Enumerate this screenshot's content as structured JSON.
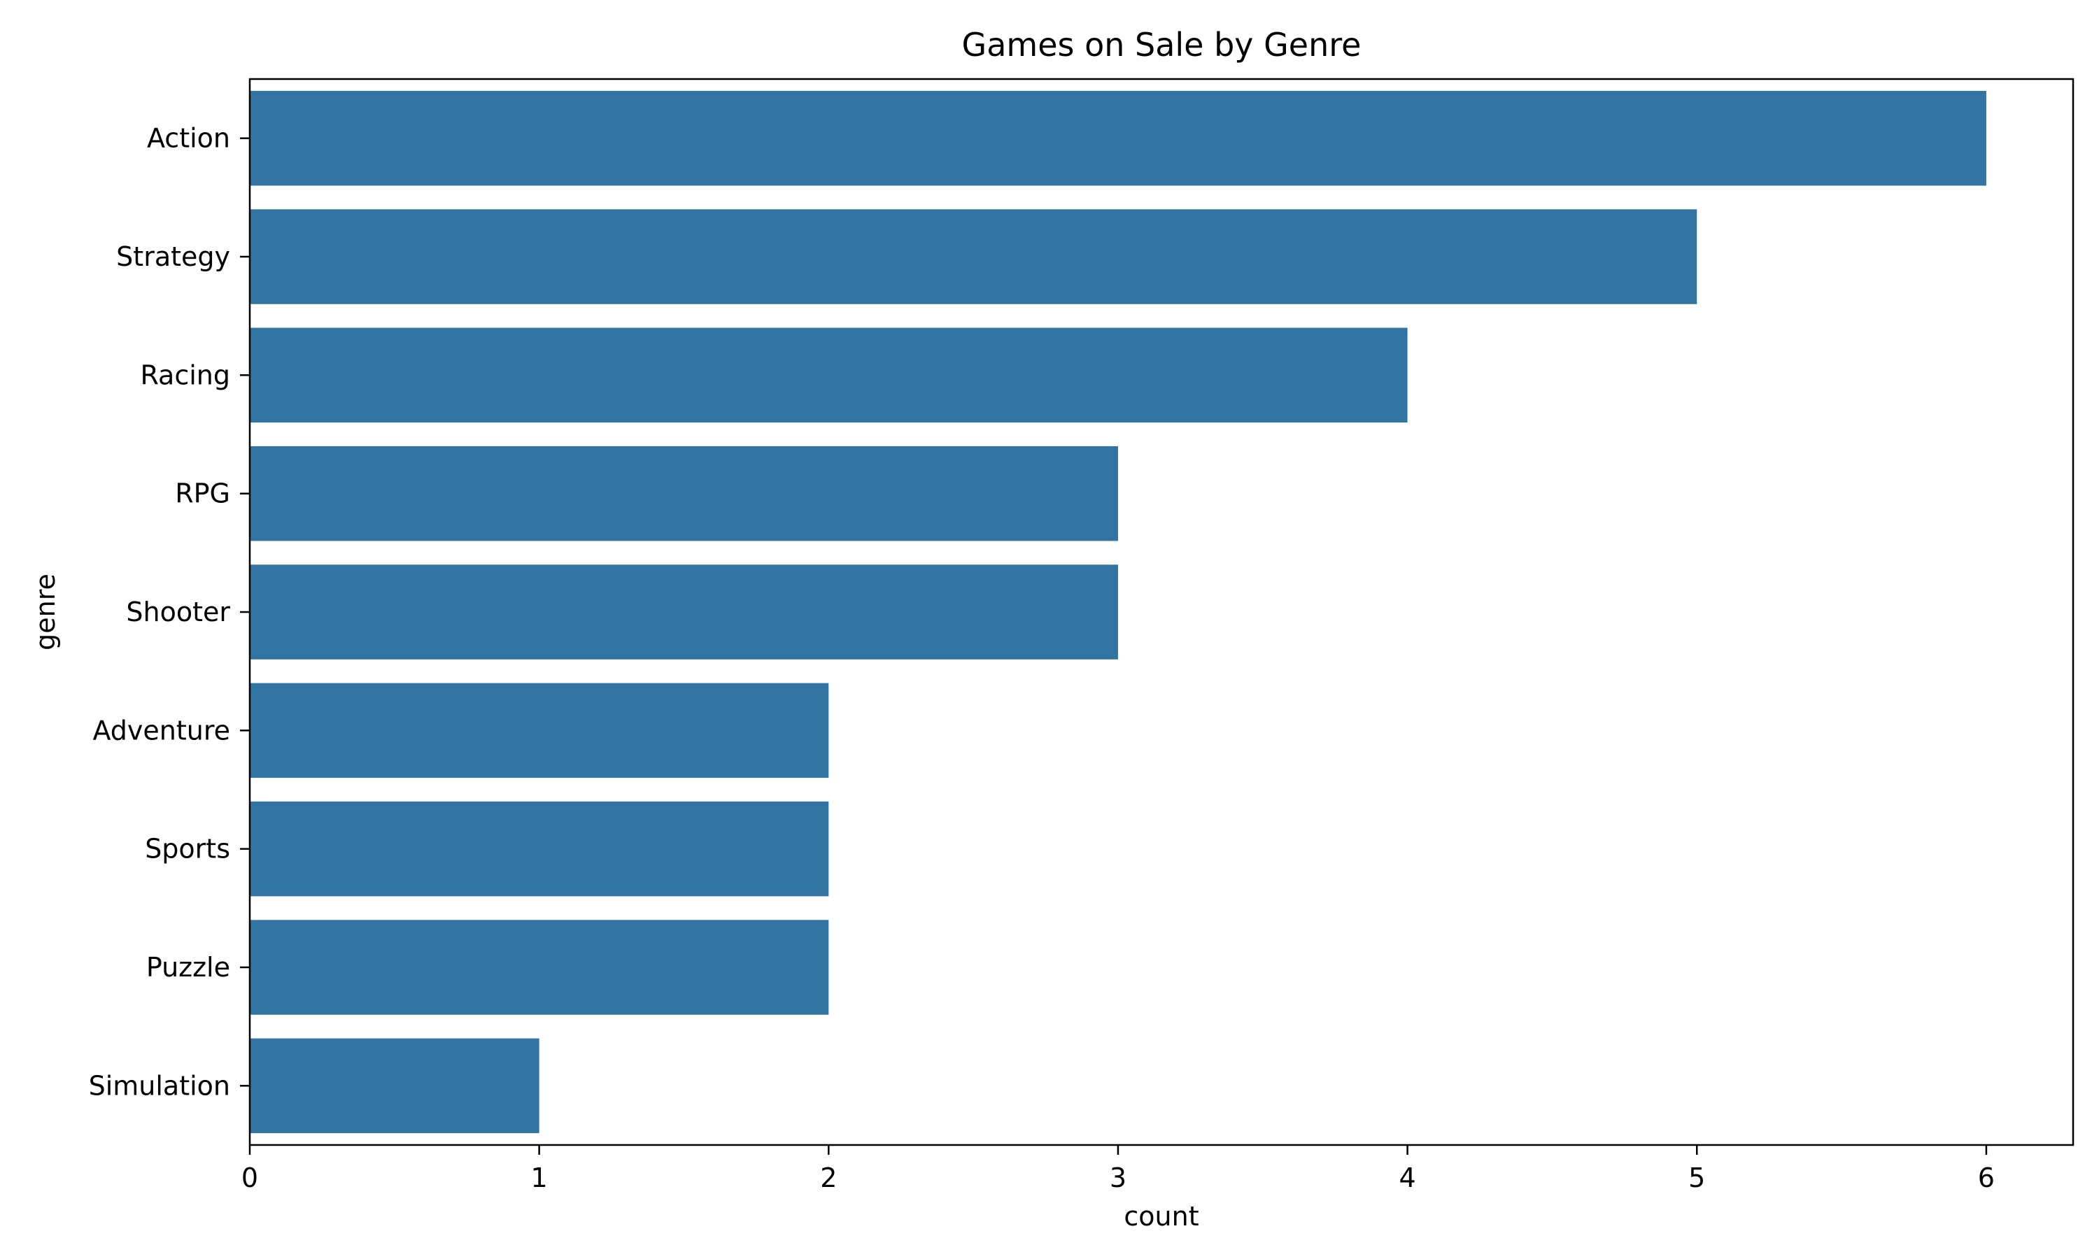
{
  "chart_data": {
    "type": "bar",
    "orientation": "horizontal",
    "title": "Games on Sale by Genre",
    "xlabel": "count",
    "ylabel": "genre",
    "categories": [
      "Action",
      "Strategy",
      "Racing",
      "RPG",
      "Shooter",
      "Adventure",
      "Sports",
      "Puzzle",
      "Simulation"
    ],
    "values": [
      6,
      5,
      4,
      3,
      3,
      2,
      2,
      2,
      1
    ],
    "xlim": [
      0,
      6.3
    ],
    "xticks": [
      0,
      1,
      2,
      3,
      4,
      5,
      6
    ],
    "grid": false,
    "legend": false,
    "bar_color": "#3274a1"
  }
}
